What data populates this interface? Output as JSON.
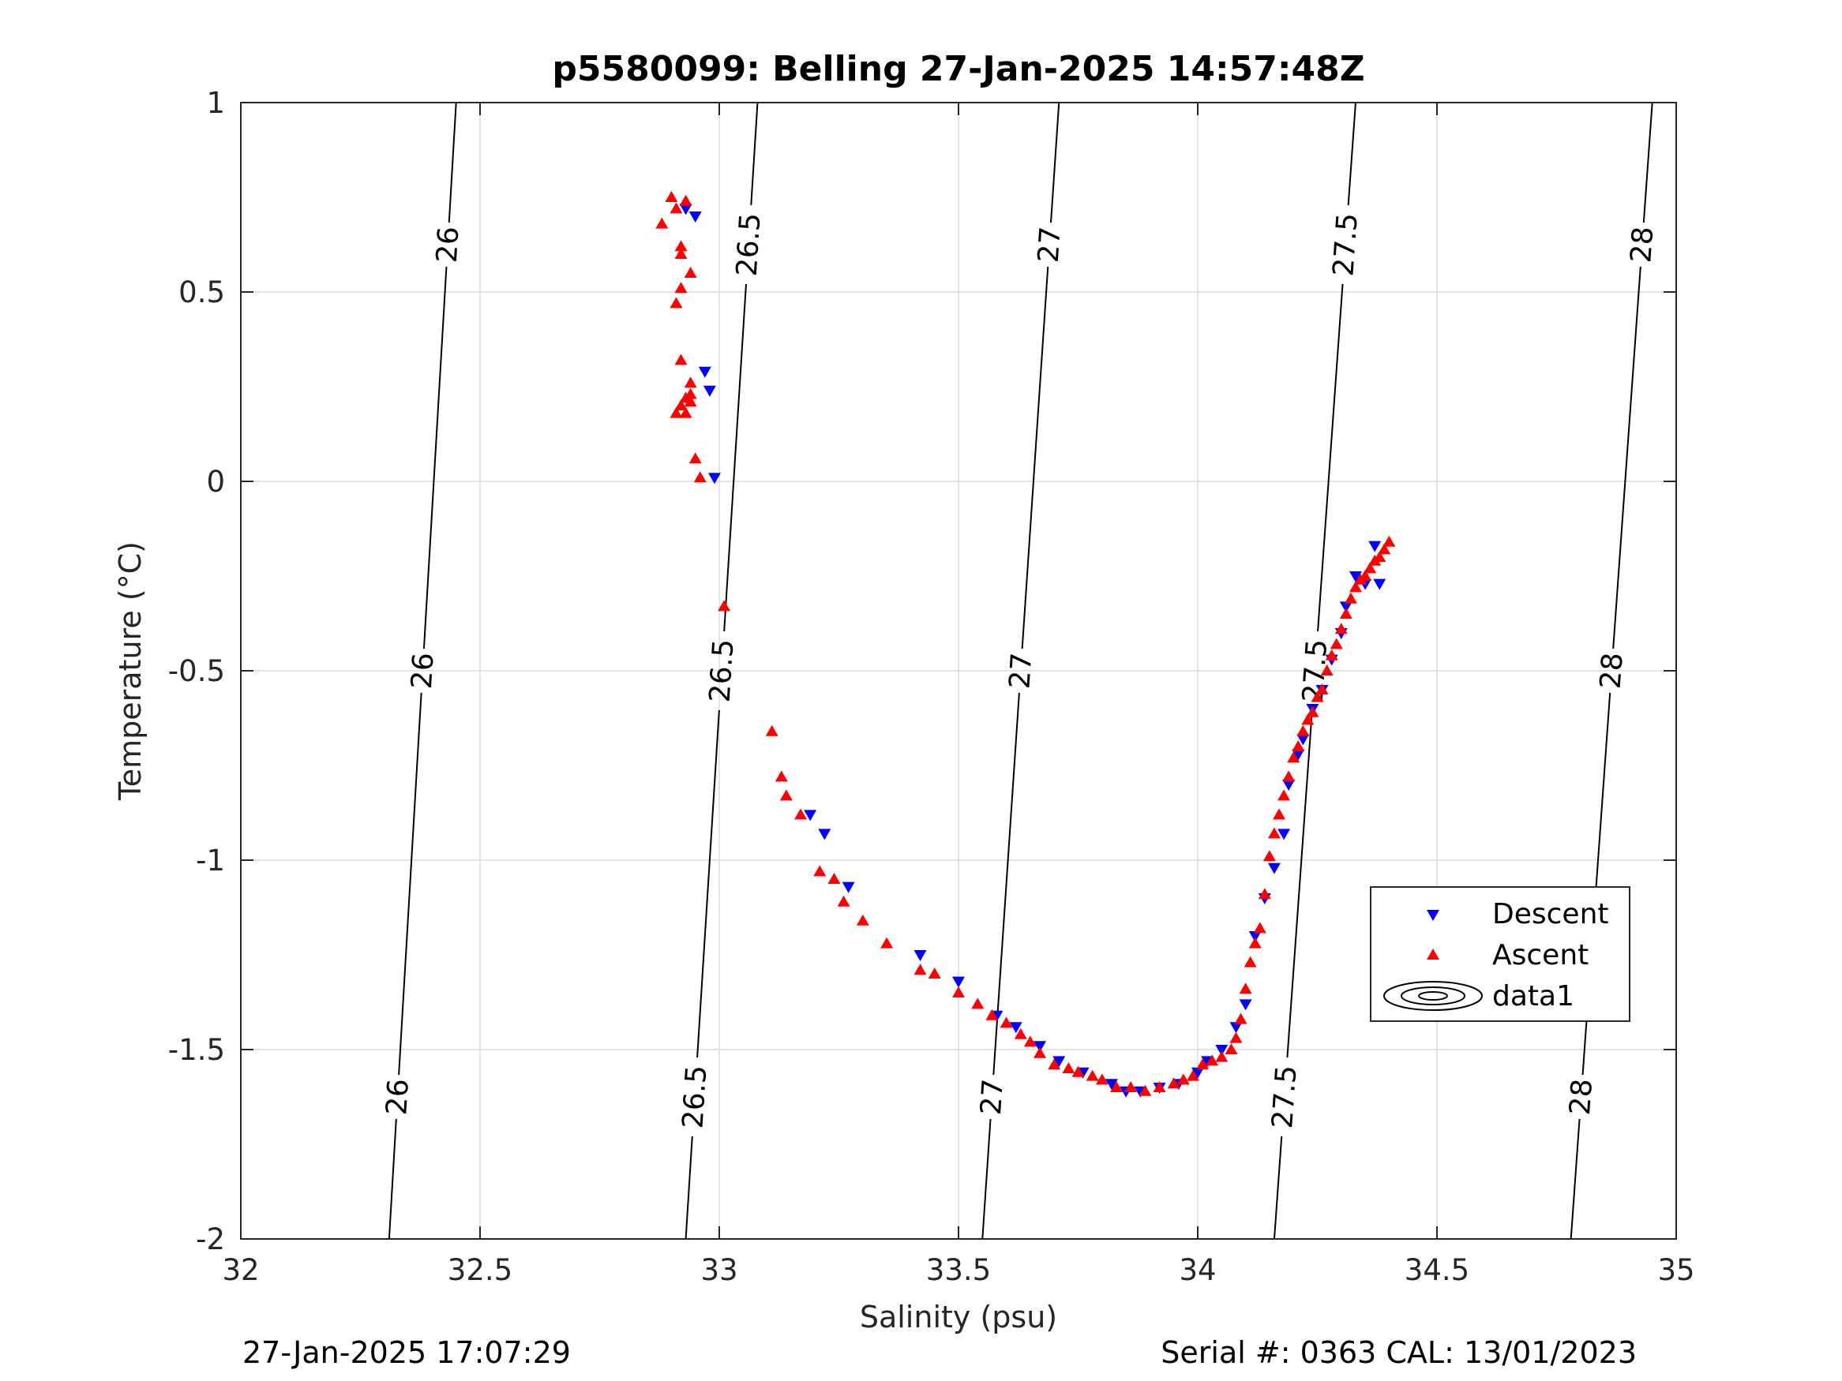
{
  "chart_data": {
    "type": "scatter",
    "title": "p5580099: Belling 27-Jan-2025 14:57:48Z",
    "xlabel": "Salinity (psu)",
    "ylabel": "Temperature (°C)",
    "xlim": [
      32,
      35
    ],
    "ylim": [
      -2,
      1
    ],
    "xticks": [
      "32",
      "32.5",
      "33",
      "33.5",
      "34",
      "34.5",
      "35"
    ],
    "yticks": [
      "-2",
      "-1.5",
      "-1",
      "-0.5",
      "0",
      "0.5",
      "1"
    ],
    "grid": true,
    "legend": {
      "placement": "lower-right",
      "entries": [
        "Descent",
        "Ascent",
        "data1"
      ]
    },
    "isopycnals": [
      {
        "label": "26",
        "x_at_bottom": 32.31,
        "x_at_top": 32.45
      },
      {
        "label": "26.5",
        "x_at_bottom": 32.93,
        "x_at_top": 33.08
      },
      {
        "label": "27",
        "x_at_bottom": 33.55,
        "x_at_top": 33.71
      },
      {
        "label": "27.5",
        "x_at_bottom": 34.16,
        "x_at_top": 34.33
      },
      {
        "label": "28",
        "x_at_bottom": 34.78,
        "x_at_top": 34.95
      }
    ],
    "series": [
      {
        "name": "Descent",
        "color": "#0000ff",
        "marker": "triangle-down",
        "x": [
          32.93,
          32.95,
          32.97,
          32.98,
          32.99,
          33.19,
          33.22,
          33.27,
          33.42,
          33.5,
          33.58,
          33.62,
          33.67,
          33.71,
          33.76,
          33.82,
          33.85,
          33.88,
          33.92,
          33.96,
          34.0,
          34.02,
          34.05,
          34.08,
          34.1,
          34.12,
          34.14,
          34.16,
          34.18,
          34.19,
          34.21,
          34.22,
          34.24,
          34.26,
          34.28,
          34.3,
          34.31,
          34.33,
          34.35,
          34.37,
          34.38
        ],
        "y": [
          0.72,
          0.7,
          0.29,
          0.24,
          0.01,
          -0.88,
          -0.93,
          -1.07,
          -1.25,
          -1.32,
          -1.41,
          -1.44,
          -1.49,
          -1.53,
          -1.56,
          -1.59,
          -1.61,
          -1.61,
          -1.6,
          -1.59,
          -1.56,
          -1.53,
          -1.5,
          -1.44,
          -1.38,
          -1.2,
          -1.1,
          -1.02,
          -0.93,
          -0.8,
          -0.72,
          -0.68,
          -0.6,
          -0.55,
          -0.47,
          -0.4,
          -0.33,
          -0.25,
          -0.27,
          -0.17,
          -0.27
        ]
      },
      {
        "name": "Ascent",
        "color": "#ff0000",
        "marker": "triangle-up",
        "x": [
          32.88,
          32.9,
          32.91,
          32.93,
          32.92,
          32.92,
          32.94,
          32.92,
          32.91,
          32.92,
          32.94,
          32.93,
          32.92,
          32.91,
          32.93,
          32.94,
          32.94,
          32.95,
          32.96,
          33.01,
          33.11,
          33.13,
          33.14,
          33.17,
          33.21,
          33.24,
          33.26,
          33.3,
          33.35,
          33.42,
          33.45,
          33.5,
          33.54,
          33.57,
          33.6,
          33.63,
          33.65,
          33.67,
          33.7,
          33.73,
          33.75,
          33.78,
          33.8,
          33.83,
          33.86,
          33.89,
          33.92,
          33.95,
          33.97,
          33.99,
          34.01,
          34.03,
          34.05,
          34.07,
          34.08,
          34.09,
          34.1,
          34.11,
          34.12,
          34.13,
          34.14,
          34.15,
          34.16,
          34.17,
          34.18,
          34.19,
          34.2,
          34.21,
          34.22,
          34.23,
          34.24,
          34.25,
          34.26,
          34.27,
          34.28,
          34.29,
          34.3,
          34.31,
          34.32,
          34.33,
          34.34,
          34.35,
          34.36,
          34.37,
          34.38,
          34.39,
          34.4
        ],
        "y": [
          0.68,
          0.75,
          0.72,
          0.74,
          0.62,
          0.6,
          0.55,
          0.51,
          0.47,
          0.32,
          0.26,
          0.22,
          0.2,
          0.18,
          0.18,
          0.21,
          0.23,
          0.06,
          0.01,
          -0.33,
          -0.66,
          -0.78,
          -0.83,
          -0.88,
          -1.03,
          -1.05,
          -1.11,
          -1.16,
          -1.22,
          -1.29,
          -1.3,
          -1.35,
          -1.38,
          -1.41,
          -1.43,
          -1.46,
          -1.48,
          -1.51,
          -1.54,
          -1.55,
          -1.56,
          -1.57,
          -1.58,
          -1.6,
          -1.6,
          -1.61,
          -1.6,
          -1.59,
          -1.58,
          -1.57,
          -1.54,
          -1.53,
          -1.52,
          -1.5,
          -1.47,
          -1.42,
          -1.34,
          -1.27,
          -1.22,
          -1.18,
          -1.09,
          -0.99,
          -0.93,
          -0.88,
          -0.83,
          -0.78,
          -0.73,
          -0.7,
          -0.66,
          -0.63,
          -0.61,
          -0.57,
          -0.55,
          -0.5,
          -0.46,
          -0.43,
          -0.39,
          -0.35,
          -0.31,
          -0.28,
          -0.26,
          -0.25,
          -0.23,
          -0.21,
          -0.2,
          -0.18,
          -0.16
        ]
      }
    ]
  },
  "footer": {
    "left": "27-Jan-2025 17:07:29",
    "right": "Serial #: 0363  CAL: 13/01/2023"
  }
}
